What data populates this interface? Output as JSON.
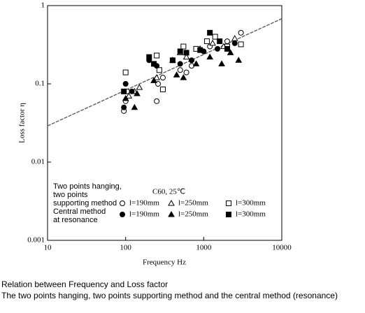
{
  "chart_data": {
    "type": "scatter",
    "x_label": "Frequency Hz",
    "y_label": "Loss factor  η",
    "xlog": true,
    "ylog": true,
    "xlim": [
      10,
      10000
    ],
    "ylim": [
      0.001,
      1
    ],
    "xticks": [
      10,
      100,
      1000,
      10000
    ],
    "yticks": [
      0.001,
      0.01,
      0.1,
      1
    ],
    "annotation": "C60, 25℃",
    "legend_groups": [
      {
        "lines": [
          "Two points hanging,",
          "two points",
          "supporting method"
        ],
        "series": [
          0,
          1,
          2
        ]
      },
      {
        "lines": [
          "Central method",
          "at resonance"
        ],
        "series": [
          3,
          4,
          5
        ]
      }
    ],
    "series": [
      {
        "name": "l=190mm",
        "marker": "circle",
        "filled": false,
        "color": "#000000",
        "x": [
          95,
          100,
          105,
          250,
          260,
          300,
          500,
          600,
          700,
          1200,
          2000,
          3000
        ],
        "values": [
          0.045,
          0.06,
          0.08,
          0.06,
          0.1,
          0.12,
          0.15,
          0.14,
          0.17,
          0.3,
          0.35,
          0.45
        ]
      },
      {
        "name": "l=250mm",
        "marker": "triangle",
        "filled": false,
        "color": "#000000",
        "x": [
          110,
          130,
          150,
          250,
          400,
          500,
          600,
          900,
          1300,
          1800,
          2500
        ],
        "values": [
          0.07,
          0.08,
          0.09,
          0.12,
          0.2,
          0.25,
          0.22,
          0.28,
          0.33,
          0.3,
          0.38
        ]
      },
      {
        "name": "l=300mm",
        "marker": "square",
        "filled": false,
        "color": "#000000",
        "x": [
          100,
          250,
          270,
          300,
          550,
          800,
          1100,
          1400,
          2000,
          3000
        ],
        "values": [
          0.14,
          0.23,
          0.15,
          0.085,
          0.3,
          0.28,
          0.35,
          0.4,
          0.3,
          0.32
        ]
      },
      {
        "name": "l=190mm",
        "marker": "circle",
        "filled": true,
        "color": "#000000",
        "x": [
          95,
          100,
          120,
          200,
          250,
          500,
          700,
          1000,
          1500,
          2500
        ],
        "values": [
          0.05,
          0.1,
          0.08,
          0.2,
          0.17,
          0.18,
          0.2,
          0.26,
          0.28,
          0.33
        ]
      },
      {
        "name": "l=250mm",
        "marker": "triangle",
        "filled": true,
        "color": "#000000",
        "x": [
          100,
          130,
          140,
          230,
          450,
          550,
          800,
          1200,
          1700,
          2200,
          2800
        ],
        "values": [
          0.065,
          0.05,
          0.075,
          0.11,
          0.13,
          0.12,
          0.18,
          0.22,
          0.18,
          0.25,
          0.2
        ]
      },
      {
        "name": "l=300mm",
        "marker": "square",
        "filled": true,
        "color": "#000000",
        "x": [
          95,
          200,
          230,
          400,
          500,
          600,
          900,
          1200,
          1600,
          2000
        ],
        "values": [
          0.08,
          0.22,
          0.18,
          0.2,
          0.26,
          0.25,
          0.27,
          0.45,
          0.35,
          0.28
        ]
      }
    ],
    "fit": {
      "color": "#555555",
      "x": [
        10,
        10000
      ],
      "values": [
        0.029,
        0.68
      ]
    },
    "caption": [
      "Relation between Frequency and Loss factor",
      "The two points hanging, two points supporting method and the central method (resonance)"
    ]
  }
}
